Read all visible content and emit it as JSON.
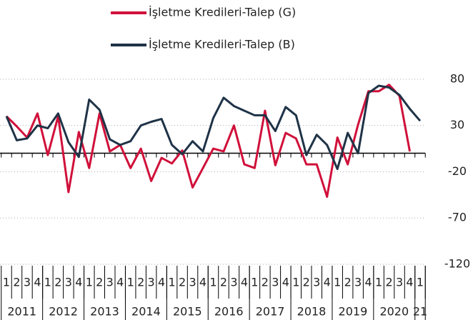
{
  "chart_data": {
    "type": "line",
    "categories": [
      "1",
      "2",
      "3",
      "4",
      "1",
      "2",
      "3",
      "4",
      "1",
      "2",
      "3",
      "4",
      "1",
      "2",
      "3",
      "4",
      "1",
      "2",
      "3",
      "4",
      "1",
      "2",
      "3",
      "4",
      "1",
      "2",
      "3",
      "4",
      "1",
      "2",
      "3",
      "4",
      "1",
      "2",
      "3",
      "4",
      "1",
      "2",
      "3",
      "4",
      "1"
    ],
    "years": [
      "2011",
      "2012",
      "2013",
      "2014",
      "2015",
      "2016",
      "2017",
      "2018",
      "2019",
      "2020",
      "21"
    ],
    "series": [
      {
        "name": "İşletme Kredileri-Talep (G)",
        "color": "#d0103a",
        "values": [
          40,
          29,
          17,
          43,
          -2,
          40,
          -42,
          23,
          -16,
          43,
          2,
          9,
          -16,
          5,
          -30,
          -5,
          -11,
          3,
          -37,
          -16,
          5,
          2,
          30,
          -12,
          -16,
          46,
          -13,
          22,
          16,
          -12,
          -12,
          -47,
          17,
          -12,
          31,
          67,
          67,
          74,
          62,
          2,
          null
        ]
      },
      {
        "name": "İşletme Kredileri-Talep (B)",
        "color": "#1f3347",
        "values": [
          40,
          14,
          16,
          30,
          27,
          43,
          12,
          -4,
          58,
          47,
          15,
          9,
          13,
          30,
          34,
          37,
          9,
          -1,
          13,
          2,
          38,
          60,
          51,
          46,
          41,
          41,
          24,
          50,
          41,
          -2,
          20,
          9,
          -17,
          22,
          0,
          65,
          73,
          71,
          63,
          48,
          35
        ]
      }
    ],
    "ylim": [
      -120,
      100
    ],
    "yticks": [
      80,
      30,
      -20,
      -70,
      -120
    ],
    "grid": true,
    "legend": "top"
  }
}
